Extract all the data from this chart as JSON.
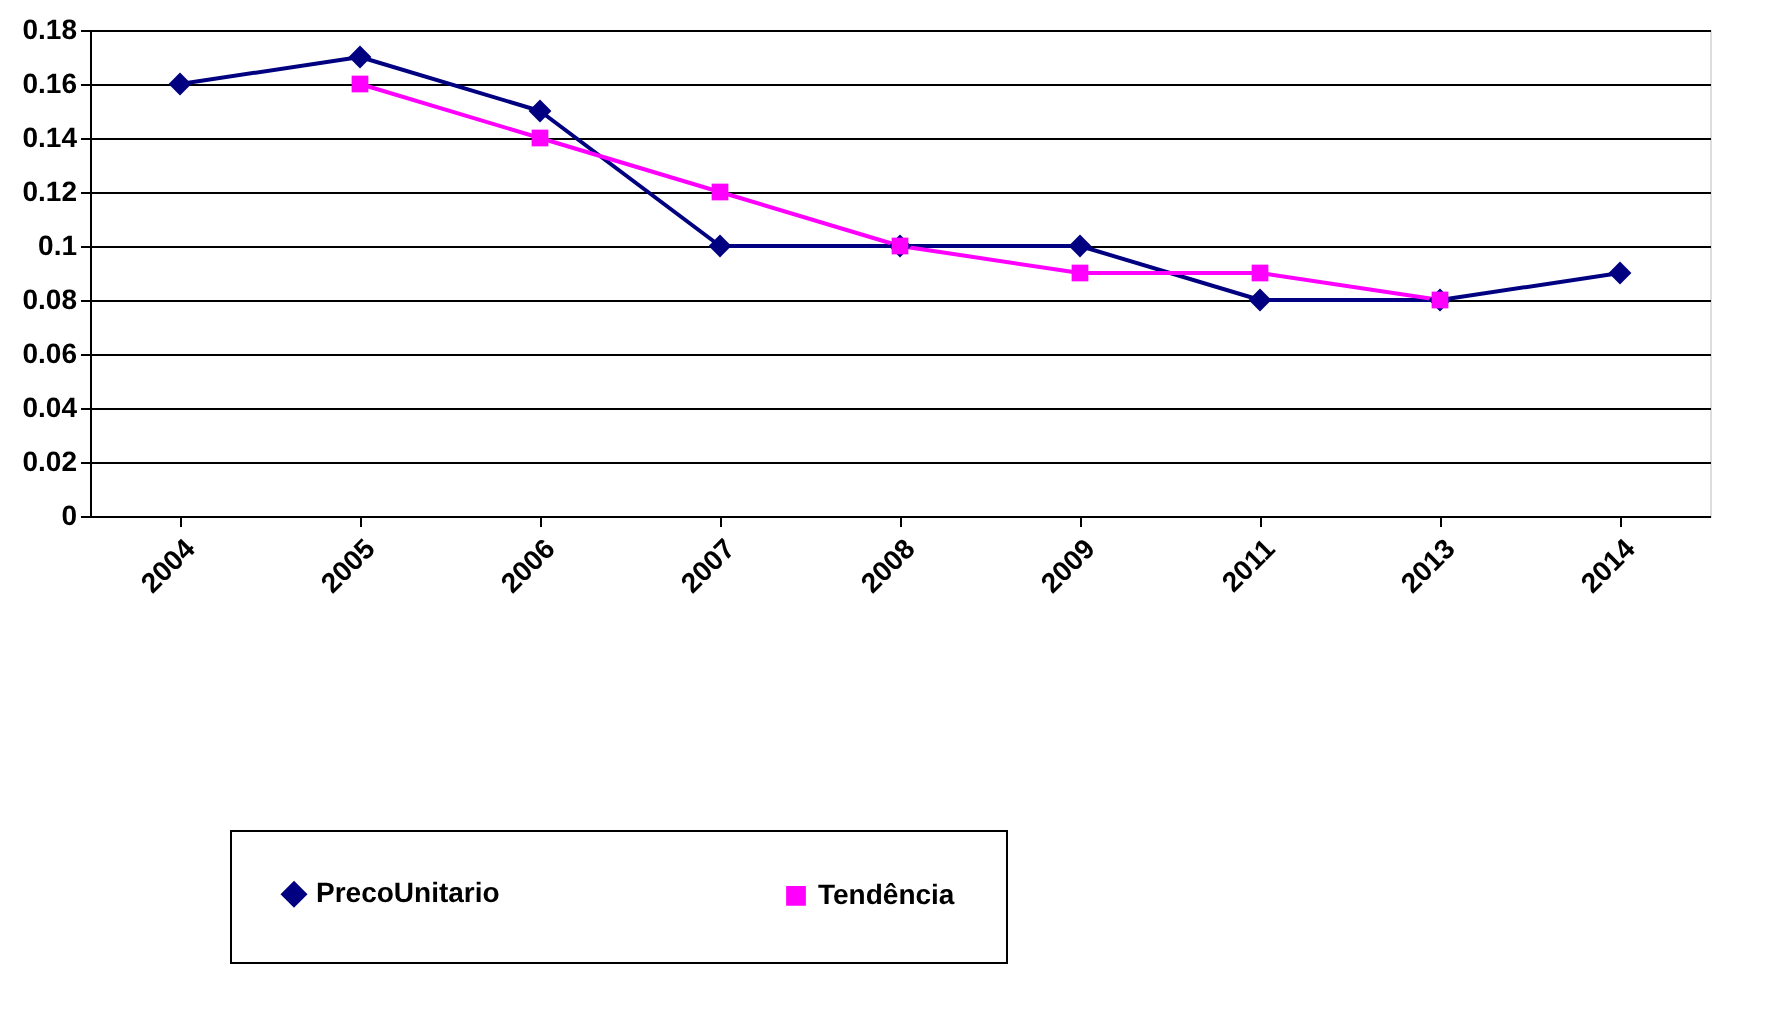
{
  "chart_data": {
    "type": "line",
    "categories": [
      "2004",
      "2005",
      "2006",
      "2007",
      "2008",
      "2009",
      "2011",
      "2013",
      "2014"
    ],
    "series": [
      {
        "name": "PrecoUnitario",
        "color": "#000080",
        "marker": "diamond",
        "values": [
          0.16,
          0.17,
          0.15,
          0.1,
          0.1,
          0.1,
          0.08,
          0.08,
          0.09
        ]
      },
      {
        "name": "Tendência",
        "color": "#ff00ff",
        "marker": "square",
        "values": [
          null,
          0.16,
          0.14,
          0.12,
          0.1,
          0.09,
          0.09,
          0.08,
          null
        ]
      }
    ],
    "ylim": [
      0,
      0.18
    ],
    "yticks": [
      0,
      0.02,
      0.04,
      0.06,
      0.08,
      0.1,
      0.12,
      0.14,
      0.16,
      0.18
    ],
    "grid": "y",
    "legend": "bottom",
    "line_style": "solid"
  }
}
